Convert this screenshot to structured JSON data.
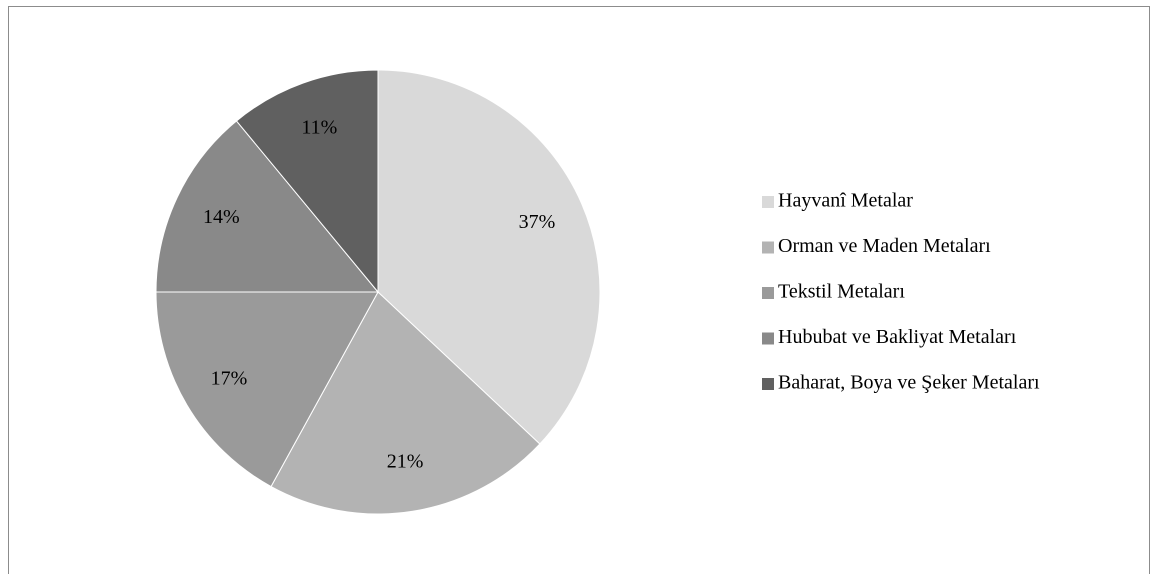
{
  "chart_data": {
    "type": "pie",
    "categories": [
      "Hayvanî Metalar",
      "Orman ve Maden Metaları",
      "Tekstil Metaları",
      "Hububat ve Bakliyat Metaları",
      "Baharat, Boya ve Şeker Metaları"
    ],
    "values": [
      37,
      21,
      17,
      14,
      11
    ],
    "value_labels": [
      "37%",
      "21%",
      "17%",
      "14%",
      "11%"
    ],
    "colors": [
      "#d9d9d9",
      "#b3b3b3",
      "#9a9a9a",
      "#898989",
      "#606060"
    ],
    "legend": "right"
  }
}
